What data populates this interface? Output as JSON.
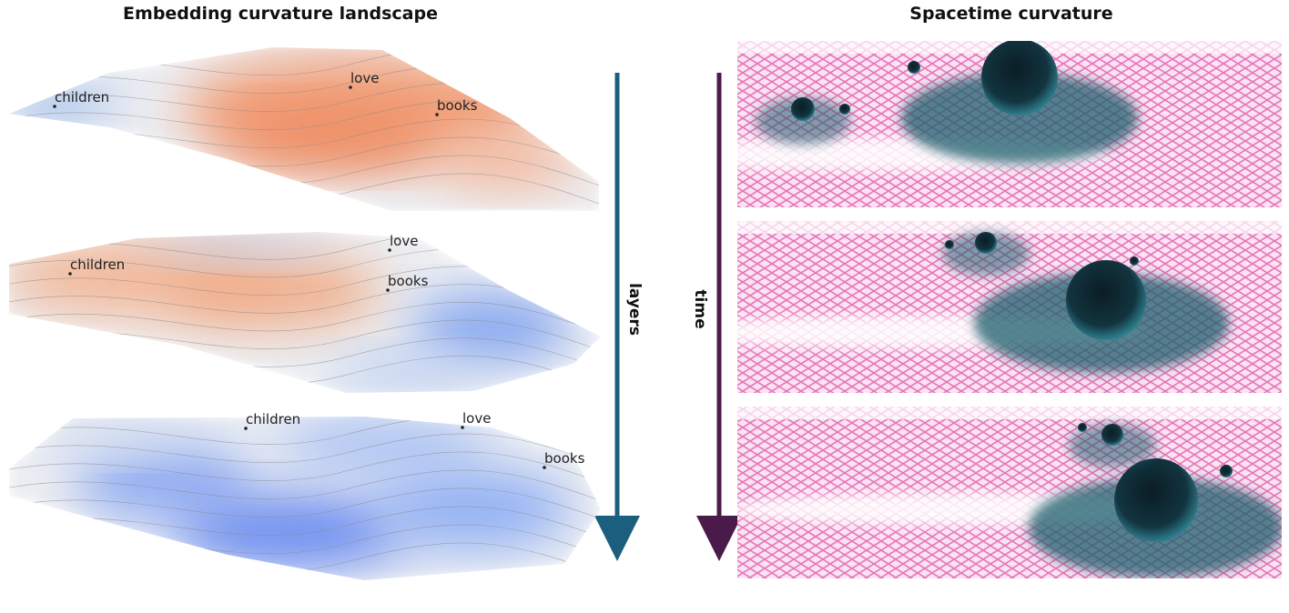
{
  "left": {
    "title": "Embedding curvature landscape",
    "panels": [
      {
        "words": [
          "children",
          "love",
          "books"
        ]
      },
      {
        "words": [
          "children",
          "love",
          "books"
        ]
      },
      {
        "words": [
          "children",
          "love",
          "books"
        ]
      }
    ],
    "arrow_label": "layers"
  },
  "right": {
    "title": "Spacetime curvature",
    "arrow_label": "time"
  }
}
